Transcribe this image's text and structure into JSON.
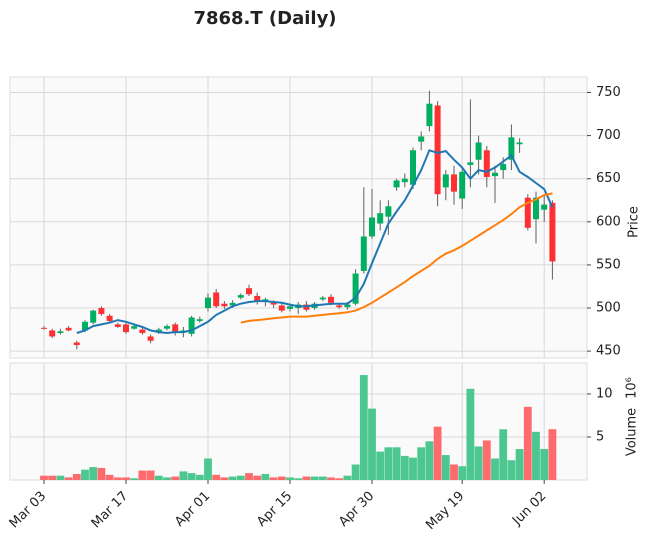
{
  "chart_data": {
    "type": "candlestick",
    "title": "7868.T (Daily)",
    "ylabel": "Price",
    "volume_label": "Volume",
    "volume_unit": "10⁶",
    "categories": [
      "Mar 03",
      null,
      null,
      null,
      null,
      null,
      null,
      null,
      null,
      null,
      "Mar 17",
      null,
      null,
      null,
      null,
      null,
      null,
      null,
      null,
      null,
      "Apr 01",
      null,
      null,
      null,
      null,
      null,
      null,
      null,
      null,
      null,
      "Apr 15",
      null,
      null,
      null,
      null,
      null,
      null,
      null,
      null,
      null,
      "Apr 30",
      null,
      null,
      null,
      null,
      null,
      null,
      null,
      null,
      null,
      null,
      "May 19",
      null,
      null,
      null,
      null,
      null,
      null,
      null,
      null,
      null,
      "Jun 02",
      null
    ],
    "open": [
      477,
      474,
      471,
      477,
      460,
      474,
      483,
      500,
      491,
      481,
      481,
      476,
      475,
      467,
      472,
      476,
      481,
      472,
      470,
      485,
      500,
      518,
      505,
      503,
      512,
      523,
      514,
      508,
      506,
      503,
      499,
      500,
      504,
      500,
      510,
      513,
      503,
      501,
      505,
      543,
      583,
      598,
      606,
      640,
      646,
      643,
      693,
      711,
      735,
      640,
      655,
      627,
      666,
      672,
      683,
      653,
      660,
      672,
      690,
      628,
      603,
      614,
      622
    ],
    "high": [
      479,
      476,
      476,
      479,
      462,
      486,
      498,
      502,
      493,
      483,
      484,
      481,
      477,
      469,
      477,
      481,
      483,
      478,
      491,
      490,
      517,
      522,
      508,
      509,
      517,
      527,
      518,
      512,
      509,
      506,
      504,
      507,
      508,
      507,
      514,
      516,
      506,
      507,
      545,
      640,
      638,
      625,
      625,
      650,
      656,
      686,
      705,
      752,
      740,
      660,
      665,
      662,
      742,
      700,
      688,
      665,
      675,
      713,
      697,
      632,
      635,
      630,
      625
    ],
    "low": [
      475,
      465,
      469,
      473,
      452,
      472,
      481,
      491,
      482,
      477,
      470,
      475,
      469,
      459,
      470,
      474,
      468,
      466,
      467,
      483,
      496,
      500,
      499,
      500,
      510,
      514,
      504,
      502,
      500,
      495,
      496,
      493,
      496,
      498,
      508,
      503,
      499,
      498,
      503,
      540,
      580,
      590,
      585,
      636,
      640,
      638,
      683,
      705,
      618,
      625,
      620,
      615,
      640,
      655,
      640,
      622,
      650,
      660,
      680,
      590,
      575,
      600,
      533
    ],
    "close": [
      476,
      467,
      473,
      474,
      457,
      484,
      497,
      493,
      485,
      478,
      472,
      479,
      471,
      462,
      475,
      479,
      472,
      474,
      489,
      487,
      512,
      502,
      502,
      506,
      515,
      516,
      507,
      510,
      504,
      497,
      502,
      504,
      498,
      505,
      512,
      506,
      501,
      504,
      540,
      583,
      605,
      610,
      618,
      648,
      650,
      683,
      699,
      737,
      632,
      655,
      635,
      658,
      669,
      692,
      652,
      657,
      667,
      698,
      692,
      593,
      628,
      620,
      554
    ],
    "volume": [
      0.5,
      0.5,
      0.5,
      0.3,
      0.7,
      1.2,
      1.5,
      1.4,
      0.6,
      0.3,
      0.3,
      0.2,
      1.1,
      1.1,
      0.5,
      0.3,
      0.4,
      1.0,
      0.8,
      0.6,
      2.5,
      0.6,
      0.3,
      0.4,
      0.5,
      0.8,
      0.5,
      0.7,
      0.3,
      0.4,
      0.3,
      0.2,
      0.4,
      0.4,
      0.4,
      0.3,
      0.2,
      0.5,
      1.8,
      12.2,
      8.3,
      3.3,
      3.8,
      3.8,
      2.8,
      2.6,
      3.8,
      4.5,
      6.2,
      2.9,
      1.8,
      1.6,
      10.6,
      3.9,
      4.6,
      2.5,
      5.9,
      2.3,
      3.6,
      8.5,
      5.6,
      3.6,
      5.9
    ],
    "moving_averages": [
      {
        "color": "#1f77b4",
        "values": [
          null,
          null,
          null,
          null,
          471,
          474,
          479,
          481,
          483,
          486,
          484,
          481,
          478,
          474,
          472,
          471,
          472,
          472,
          474,
          479,
          484,
          492,
          497,
          502,
          505,
          507,
          508,
          508,
          507,
          506,
          504,
          502,
          502,
          503,
          504,
          505,
          505,
          505,
          512,
          528,
          552,
          575,
          598,
          612,
          625,
          642,
          660,
          683,
          680,
          682,
          672,
          663,
          650,
          660,
          658,
          663,
          670,
          677,
          658,
          652,
          645,
          638,
          617
        ]
      },
      {
        "color": "#ff7f0e",
        "values": [
          null,
          null,
          null,
          null,
          null,
          null,
          null,
          null,
          null,
          null,
          null,
          null,
          null,
          null,
          null,
          null,
          null,
          null,
          null,
          null,
          null,
          null,
          null,
          null,
          483,
          485,
          486,
          487,
          488,
          489,
          490,
          490,
          490,
          491,
          492,
          493,
          494,
          495,
          497,
          501,
          506,
          512,
          518,
          524,
          530,
          537,
          543,
          549,
          557,
          563,
          567,
          572,
          578,
          584,
          590,
          596,
          602,
          609,
          617,
          622,
          626,
          631,
          633
        ]
      }
    ],
    "up_color": "#00b060",
    "down_color": "#fe3032",
    "wick_color": "#606060",
    "volume_up_color": "#4dc790",
    "volume_down_color": "#fd6b6c",
    "ylim": [
      442,
      768
    ],
    "yticks": [
      450,
      500,
      550,
      600,
      650,
      700,
      750
    ],
    "volume_ylim": [
      0,
      13.6
    ],
    "volume_yticks": [
      5,
      10
    ],
    "grid": true
  }
}
